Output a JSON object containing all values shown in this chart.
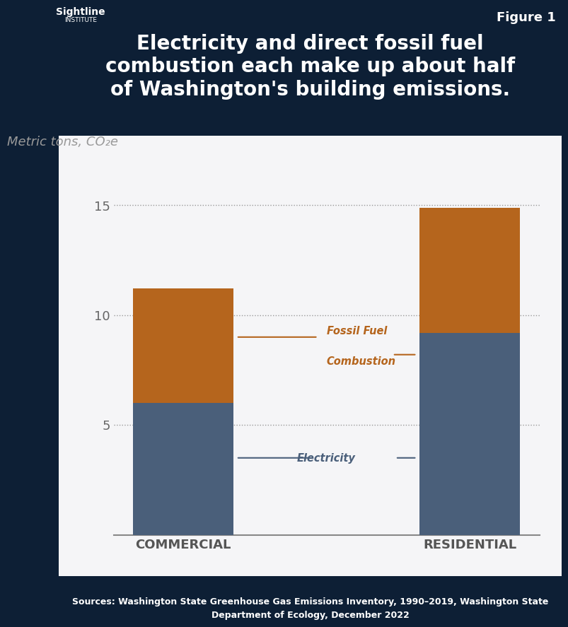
{
  "title_line1": "Electricity and direct fossil fuel",
  "title_line2": "combustion each make up about half",
  "title_line3": "of Washington's building emissions.",
  "figure_label": "Figure 1",
  "ylabel": "Metric tons, CO₂e",
  "categories": [
    "Commercial",
    "Residential"
  ],
  "electricity_values": [
    6.0,
    9.2
  ],
  "fossil_fuel_values": [
    5.2,
    5.7
  ],
  "electricity_color": "#4a5f7a",
  "fossil_fuel_color": "#b5651d",
  "background_dark": "#0d1f35",
  "background_chart": "#f5f5f7",
  "yticks": [
    5,
    10,
    15
  ],
  "ylim": [
    0,
    17
  ],
  "source_text": "Sources: Washington State Greenhouse Gas Emissions Inventory, 1990–2019, Washington State\nDepartment of Ecology, December 2022",
  "label_fossil_fuel_line1": "Fossil Fuel",
  "label_fossil_fuel_line2": "Combustion",
  "label_electricity": "Electricity",
  "fossil_fuel_label_color": "#b5651d",
  "electricity_label_color": "#4a5f7a"
}
